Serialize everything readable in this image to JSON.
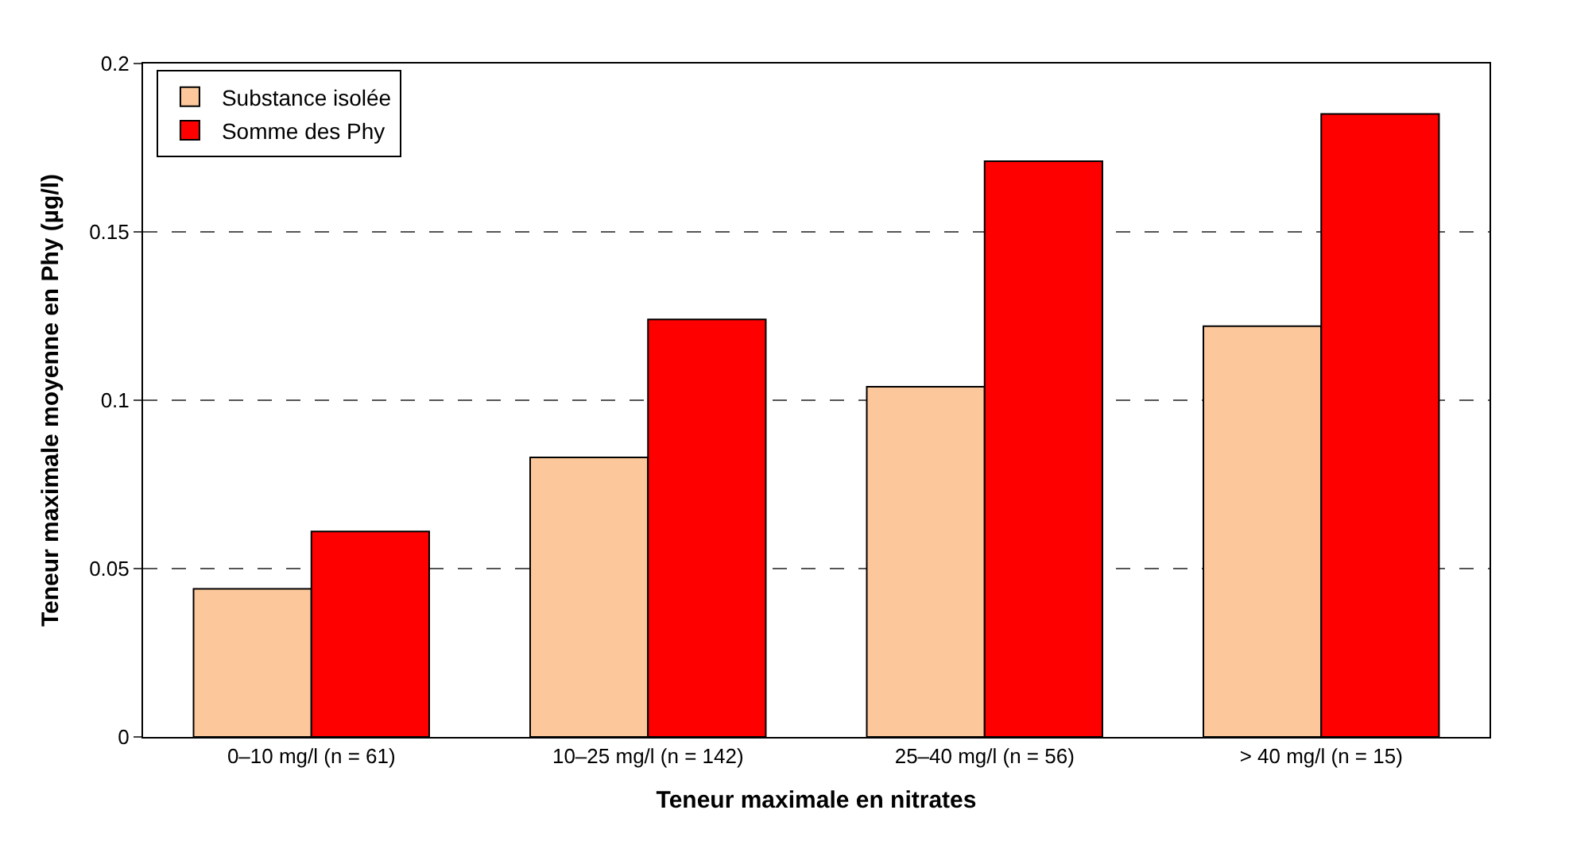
{
  "chart_data": {
    "type": "bar",
    "categories": [
      "0–10 mg/l (n = 61)",
      "10–25 mg/l (n = 142)",
      "25–40 mg/l (n = 56)",
      "> 40 mg/l (n = 15)"
    ],
    "series": [
      {
        "name": "Substance isolée",
        "color": "#fcc89b",
        "values": [
          0.044,
          0.083,
          0.104,
          0.122
        ]
      },
      {
        "name": "Somme des Phy",
        "color": "#ff0000",
        "values": [
          0.061,
          0.124,
          0.171,
          0.185
        ]
      }
    ],
    "xlabel": "Teneur maximale en nitrates",
    "ylabel": "Teneur maximale moyenne en Phy (µg/l)",
    "ylim": [
      0,
      0.2
    ],
    "yticks": [
      0,
      0.05,
      0.1,
      0.15,
      0.2
    ],
    "grid": "y",
    "legend": "top left"
  }
}
